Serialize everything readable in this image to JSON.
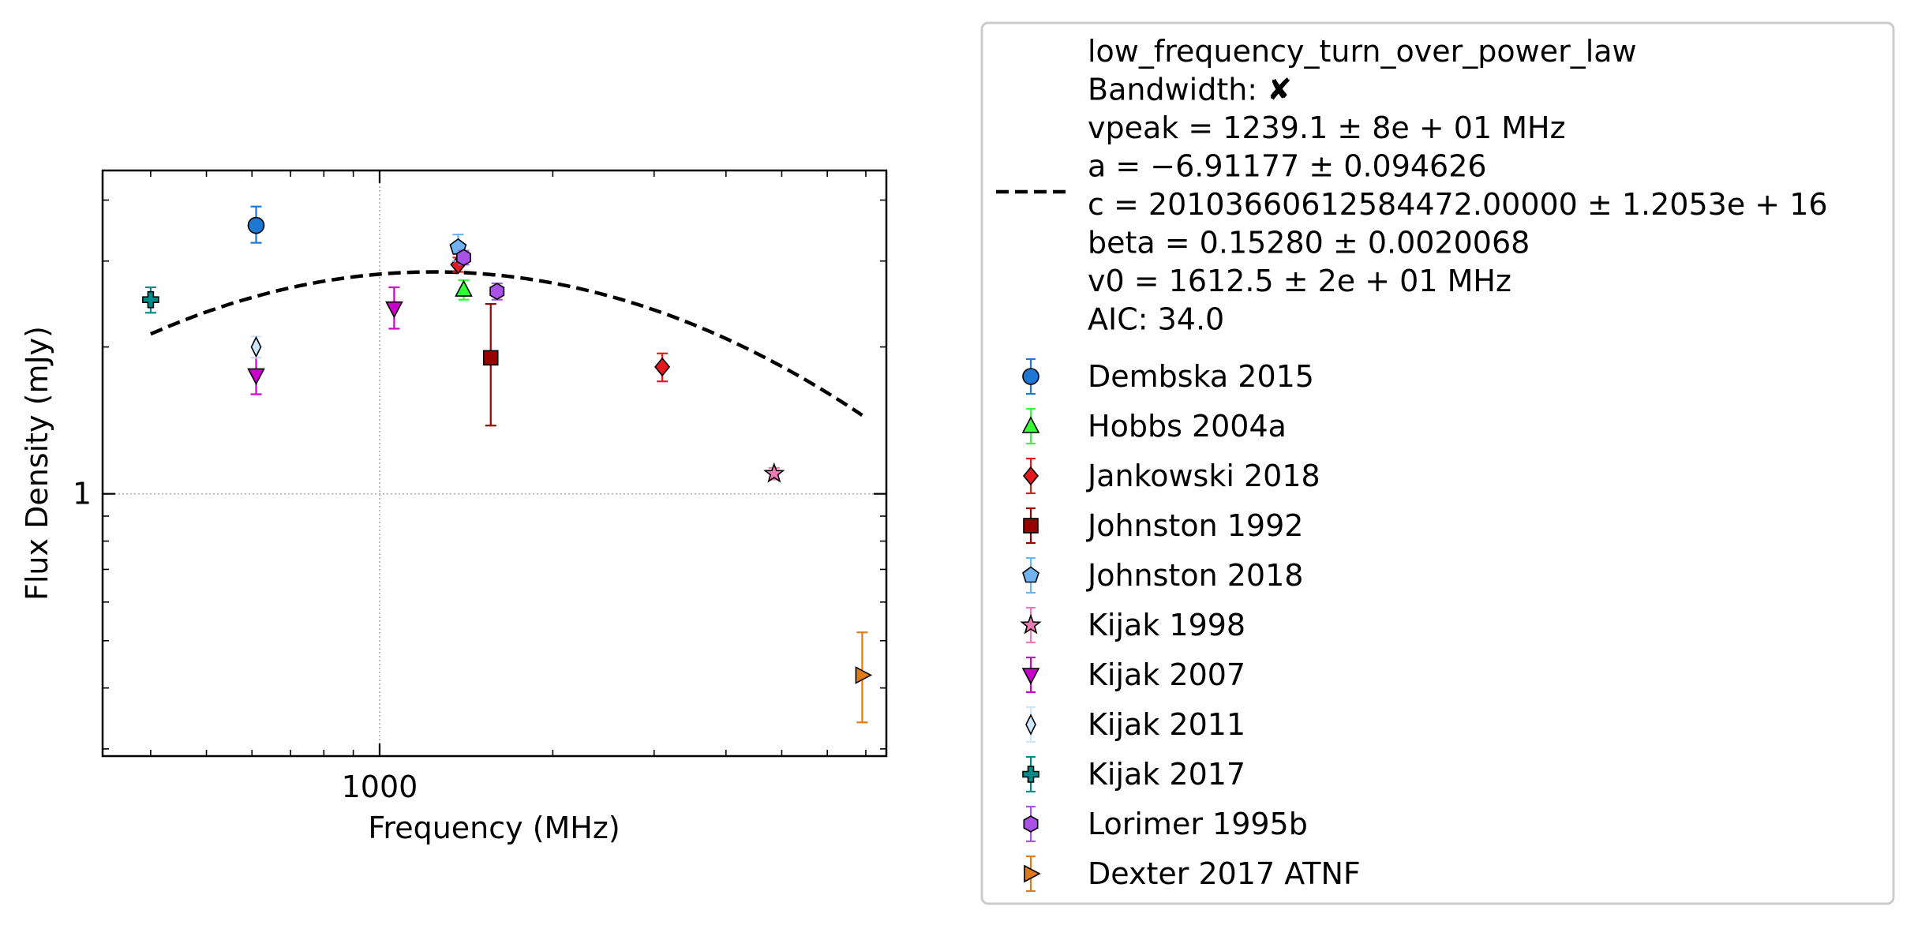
{
  "chart_data": {
    "type": "scatter",
    "xlabel": "Frequency (MHz)",
    "ylabel": "Flux Density (mJy)",
    "x_scale": "log",
    "y_scale": "log",
    "xlim": [
      330,
      7600
    ],
    "ylim": [
      0.29,
      4.6
    ],
    "x_ticks": [
      {
        "value": 1000,
        "label": "1000"
      }
    ],
    "y_ticks": [
      {
        "value": 1,
        "label": "1"
      }
    ],
    "grid": true,
    "legend_position": "outside-right",
    "fit": {
      "name": "low_frequency_turn_over_power_law",
      "lines": [
        "low_frequency_turn_over_power_law",
        "Bandwidth: ✘",
        "vpeak = 1239.1 ± 8e + 01 MHz",
        "a = −6.91177 ± 0.094626",
        "c = 20103660612584472.00000 ± 1.2053e + 16",
        "beta = 0.15280 ± 0.0020068",
        "v0 = 1612.5 ± 2e + 01 MHz",
        "AIC: 34.0"
      ],
      "vpeak": 1239.1,
      "a": -6.91177,
      "beta": 0.1528,
      "x_range": [
        400,
        6900
      ],
      "peak_flux": 2.85,
      "color": "#000000",
      "style": "dashed"
    },
    "series": [
      {
        "name": "Dembska 2015",
        "marker": "circle",
        "color": "#1f77d4",
        "ecolor": "#1f77d4",
        "points": [
          {
            "x": 610,
            "y": 3.55,
            "yerr_low": 0.28,
            "yerr_high": 0.33
          }
        ]
      },
      {
        "name": "Hobbs 2004a",
        "marker": "triangle-up",
        "color": "#33ff33",
        "ecolor": "#33ff33",
        "points": [
          {
            "x": 1400,
            "y": 2.62,
            "yerr_low": 0.12,
            "yerr_high": 0.12
          }
        ]
      },
      {
        "name": "Jankowski 2018",
        "marker": "diamond",
        "color": "#e31a1c",
        "ecolor": "#e31a1c",
        "points": [
          {
            "x": 1369,
            "y": 2.95,
            "yerr_low": 0.1,
            "yerr_high": 0.1
          },
          {
            "x": 3100,
            "y": 1.82,
            "yerr_low": 0.12,
            "yerr_high": 0.12
          }
        ]
      },
      {
        "name": "Johnston 1992",
        "marker": "square",
        "color": "#990000",
        "ecolor": "#990000",
        "points": [
          {
            "x": 1560,
            "y": 1.9,
            "yerr_low": 0.52,
            "yerr_high": 0.55
          }
        ]
      },
      {
        "name": "Johnston 2018",
        "marker": "pentagon",
        "color": "#6fb4f0",
        "ecolor": "#6fb4f0",
        "points": [
          {
            "x": 1369,
            "y": 3.2,
            "yerr_low": 0.2,
            "yerr_high": 0.2
          }
        ]
      },
      {
        "name": "Kijak 1998",
        "marker": "star",
        "color": "#f07ab5",
        "ecolor": "#f07ab5",
        "points": [
          {
            "x": 4850,
            "y": 1.1,
            "yerr_low": 0.03,
            "yerr_high": 0.03
          }
        ]
      },
      {
        "name": "Kijak 2007",
        "marker": "triangle-down",
        "color": "#cc00cc",
        "ecolor": "#cc00cc",
        "points": [
          {
            "x": 610,
            "y": 1.75,
            "yerr_low": 0.15,
            "yerr_high": 0.15
          },
          {
            "x": 1060,
            "y": 2.4,
            "yerr_low": 0.22,
            "yerr_high": 0.25
          }
        ]
      },
      {
        "name": "Kijak 2011",
        "marker": "thin-diamond",
        "color": "#cfe6ff",
        "ecolor": "#cfe6ff",
        "points": [
          {
            "x": 610,
            "y": 2.0,
            "yerr_low": 0.1,
            "yerr_high": 0.1
          }
        ]
      },
      {
        "name": "Kijak 2017",
        "marker": "plus",
        "color": "#008b8b",
        "ecolor": "#008b8b",
        "points": [
          {
            "x": 400,
            "y": 2.5,
            "yerr_low": 0.15,
            "yerr_high": 0.15
          }
        ]
      },
      {
        "name": "Lorimer 1995b",
        "marker": "hexagon",
        "color": "#a952e6",
        "ecolor": "#a952e6",
        "points": [
          {
            "x": 1400,
            "y": 3.05,
            "yerr_low": 0.1,
            "yerr_high": 0.1
          },
          {
            "x": 1600,
            "y": 2.6,
            "yerr_low": 0.1,
            "yerr_high": 0.1
          }
        ]
      },
      {
        "name": "Dexter 2017 ATNF",
        "marker": "triangle-right",
        "color": "#e07b1a",
        "ecolor": "#e07b1a",
        "points": [
          {
            "x": 6900,
            "y": 0.425,
            "yerr_low": 0.085,
            "yerr_high": 0.095
          }
        ]
      }
    ]
  }
}
